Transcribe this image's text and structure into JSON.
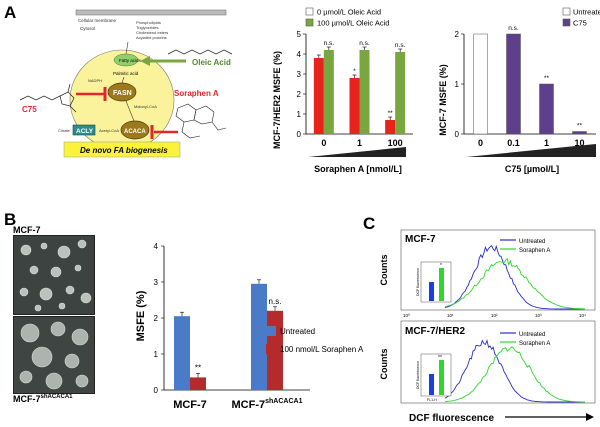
{
  "figure": {
    "panel_labels": [
      "A",
      "B",
      "C"
    ]
  },
  "panelA": {
    "diagram": {
      "membrane": "Cellular membrane",
      "cytosol": "Cytosol",
      "lipids": [
        "Phospholipids",
        "Triglycerides",
        "Cholesterol esters",
        "Acylated proteins"
      ],
      "fatty_acids": "Fatty acids",
      "palmitic": "Palmitic acid",
      "nadph": "NADPH",
      "fasn": "FASN",
      "malonyl": "Malonyl-CoA",
      "acly": "ACLY",
      "acaca": "ACACA",
      "citrate": "Citrate",
      "acetyl": "Acetyl-CoA",
      "c75": "C75",
      "oleic": "Oleic Acid",
      "soraphen": "Soraphen A",
      "biogenesis": "De novo FA biogenesis"
    }
  },
  "chart_data": [
    {
      "type": "bar",
      "ylabel": "MCF-7/HER2 MSFE (%)",
      "xlabel": "Soraphen A [nmol/L]",
      "categories": [
        "0",
        "1",
        "100"
      ],
      "ylim": [
        0,
        5
      ],
      "yticks": [
        "0",
        "1",
        "2",
        "3",
        "4",
        "5"
      ],
      "series": [
        {
          "name": "0 µmol/L Oleic Acid",
          "color": "#e8231b",
          "values": [
            3.8,
            2.8,
            0.7
          ]
        },
        {
          "name": "100 µmol/L Oleic Acid",
          "color": "#7aa63f",
          "values": [
            4.2,
            4.2,
            4.1
          ]
        }
      ],
      "annotations": [
        "n.s.",
        "*",
        "n.s.",
        "**",
        "n.s."
      ]
    },
    {
      "type": "bar",
      "ylabel": "MCF-7 MSFE (%)",
      "xlabel": "C75 [µmol/L]",
      "categories": [
        "0",
        "0.1",
        "1",
        "10"
      ],
      "ylim": [
        0,
        2
      ],
      "yticks": [
        "0",
        "1",
        "2"
      ],
      "series": [
        {
          "name": "Untreated",
          "color": "#ffffff"
        },
        {
          "name": "C75",
          "color": "#5d3f8c"
        }
      ],
      "values": [
        2.0,
        2.0,
        1.0,
        0.05
      ],
      "annotations": [
        "n.s.",
        "**",
        "**"
      ]
    },
    {
      "type": "bar",
      "ylabel": "MSFE (%)",
      "categories": [
        "MCF-7",
        "MCF-7shACACA1"
      ],
      "ylim": [
        0,
        4
      ],
      "yticks": [
        "0",
        "1",
        "2",
        "3",
        "4"
      ],
      "series": [
        {
          "name": "Untreated",
          "color": "#4a7bc8",
          "values": [
            2.05,
            2.95
          ]
        },
        {
          "name": "100 nmol/L Soraphen A",
          "color": "#b52a2a",
          "values": [
            0.35,
            2.2
          ]
        }
      ],
      "annotations": [
        "**",
        "n.s."
      ]
    }
  ],
  "panelB": {
    "micro_top": "MCF-7",
    "micro_bottom_base": "MCF-7",
    "micro_bottom_sup": "shACACA1",
    "cat1": "MCF-7",
    "cat2_base": "MCF-7",
    "cat2_sup": "shACACA1"
  },
  "panelC": {
    "top_title": "MCF-7",
    "bottom_title": "MCF-7/HER2",
    "ylabel": "Counts",
    "xlabel": "DCF fluorescence",
    "legend_untreated": "Untreated",
    "legend_soraphen": "Soraphen A",
    "inset_ylabel": "DCF fluorescence",
    "inset_star_top": "*",
    "inset_star_bottom": "**",
    "xtick_labels": [
      "10⁰",
      "10¹",
      "10²",
      "10³",
      "10⁴"
    ],
    "ytick_labels": [
      "0",
      "100",
      "200"
    ],
    "fl1": "FL1-H",
    "colors": {
      "untreated": "#2a2ad0",
      "soraphen": "#2ed62e"
    }
  }
}
